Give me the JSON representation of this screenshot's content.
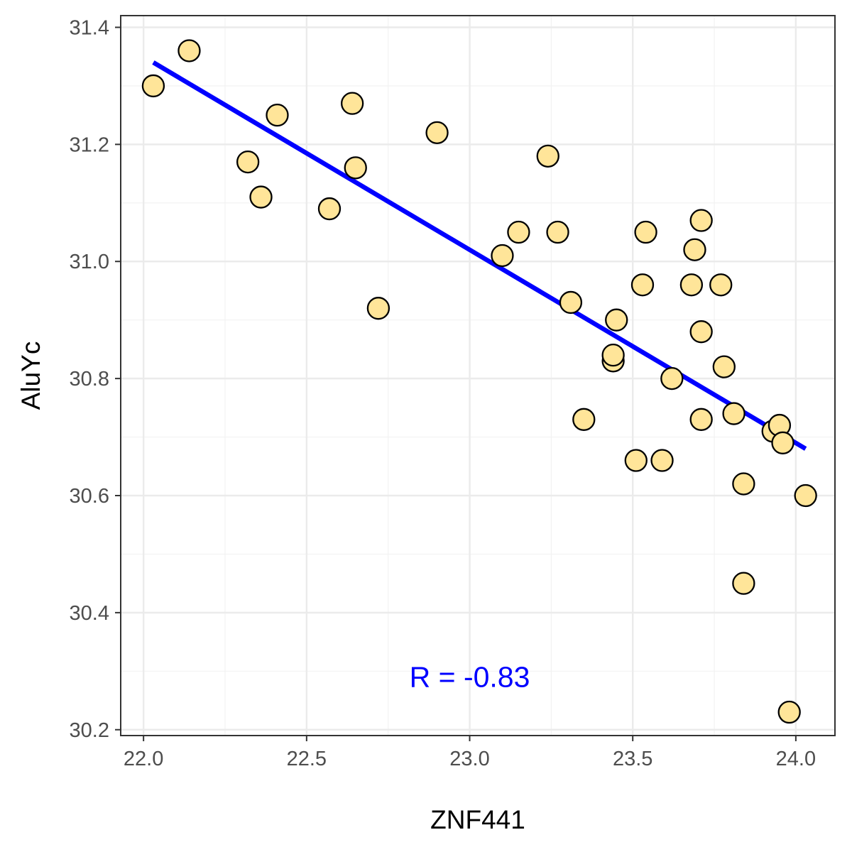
{
  "chart_data": {
    "type": "scatter",
    "title": "",
    "xlabel": "ZNF441",
    "ylabel": "AluYc",
    "xlim": [
      21.93,
      24.12
    ],
    "ylim": [
      30.19,
      31.42
    ],
    "x_ticks": [
      22.0,
      22.5,
      23.0,
      23.5,
      24.0
    ],
    "x_tick_labels": [
      "22.0",
      "22.5",
      "23.0",
      "23.5",
      "24.0"
    ],
    "y_ticks": [
      30.2,
      30.4,
      30.6,
      30.8,
      31.0,
      31.2,
      31.4
    ],
    "y_tick_labels": [
      "30.2",
      "30.4",
      "30.6",
      "30.8",
      "31.0",
      "31.2",
      "31.4"
    ],
    "x_minor_ticks": [
      22.25,
      22.75,
      23.25,
      23.75
    ],
    "y_minor_ticks": [
      30.3,
      30.5,
      30.7,
      30.9,
      31.1,
      31.3
    ],
    "grid": true,
    "legend": "none",
    "points": [
      {
        "x": 22.03,
        "y": 31.3
      },
      {
        "x": 22.14,
        "y": 31.36
      },
      {
        "x": 22.32,
        "y": 31.17
      },
      {
        "x": 22.36,
        "y": 31.11
      },
      {
        "x": 22.41,
        "y": 31.25
      },
      {
        "x": 22.57,
        "y": 31.09
      },
      {
        "x": 22.64,
        "y": 31.27
      },
      {
        "x": 22.65,
        "y": 31.16
      },
      {
        "x": 22.72,
        "y": 30.92
      },
      {
        "x": 22.9,
        "y": 31.22
      },
      {
        "x": 23.1,
        "y": 31.01
      },
      {
        "x": 23.15,
        "y": 31.05
      },
      {
        "x": 23.24,
        "y": 31.18
      },
      {
        "x": 23.27,
        "y": 31.05
      },
      {
        "x": 23.31,
        "y": 30.93
      },
      {
        "x": 23.35,
        "y": 30.73
      },
      {
        "x": 23.44,
        "y": 30.83
      },
      {
        "x": 23.44,
        "y": 30.84
      },
      {
        "x": 23.45,
        "y": 30.9
      },
      {
        "x": 23.51,
        "y": 30.66
      },
      {
        "x": 23.53,
        "y": 30.96
      },
      {
        "x": 23.54,
        "y": 31.05
      },
      {
        "x": 23.59,
        "y": 30.66
      },
      {
        "x": 23.62,
        "y": 30.8
      },
      {
        "x": 23.68,
        "y": 30.96
      },
      {
        "x": 23.69,
        "y": 31.02
      },
      {
        "x": 23.71,
        "y": 31.07
      },
      {
        "x": 23.71,
        "y": 30.88
      },
      {
        "x": 23.71,
        "y": 30.73
      },
      {
        "x": 23.77,
        "y": 30.96
      },
      {
        "x": 23.78,
        "y": 30.82
      },
      {
        "x": 23.81,
        "y": 30.74
      },
      {
        "x": 23.84,
        "y": 30.62
      },
      {
        "x": 23.84,
        "y": 30.45
      },
      {
        "x": 23.93,
        "y": 30.71
      },
      {
        "x": 23.95,
        "y": 30.72
      },
      {
        "x": 23.96,
        "y": 30.69
      },
      {
        "x": 23.98,
        "y": 30.23
      },
      {
        "x": 24.03,
        "y": 30.6
      }
    ],
    "regression_line": {
      "x": [
        22.03,
        24.03
      ],
      "y": [
        31.34,
        30.68
      ],
      "color": "#0000ff"
    },
    "annotation": {
      "text": "R = -0.83",
      "x": 23.0,
      "y": 30.29,
      "color": "#0000ff"
    },
    "point_fill": "#ffe599",
    "point_stroke": "#000000"
  }
}
